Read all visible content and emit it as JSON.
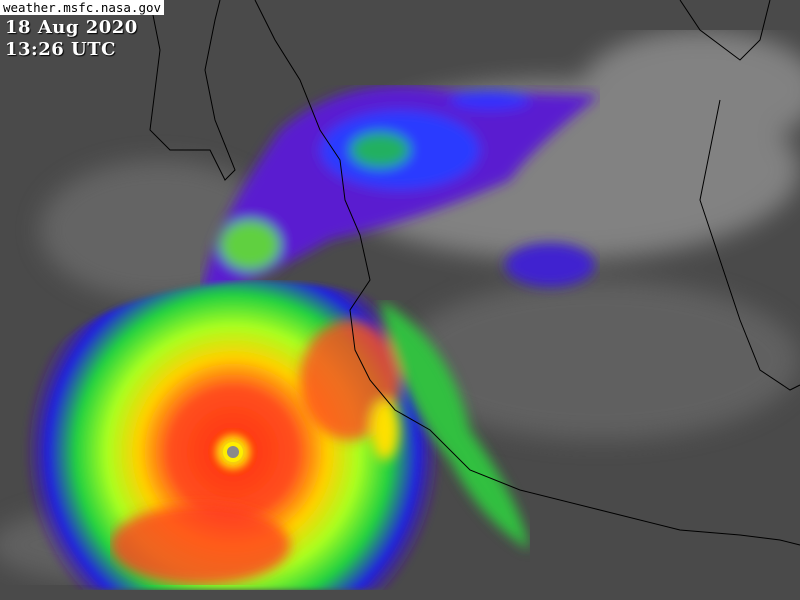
{
  "overlay": {
    "source": "weather.msfc.nasa.gov",
    "date": "18 Aug 2020",
    "time": "13:26 UTC"
  },
  "image": {
    "type": "infrared satellite image",
    "colors": {
      "background": "#4a4a4a",
      "cloud": "#c8c8c8",
      "coastline": "#000000"
    }
  }
}
